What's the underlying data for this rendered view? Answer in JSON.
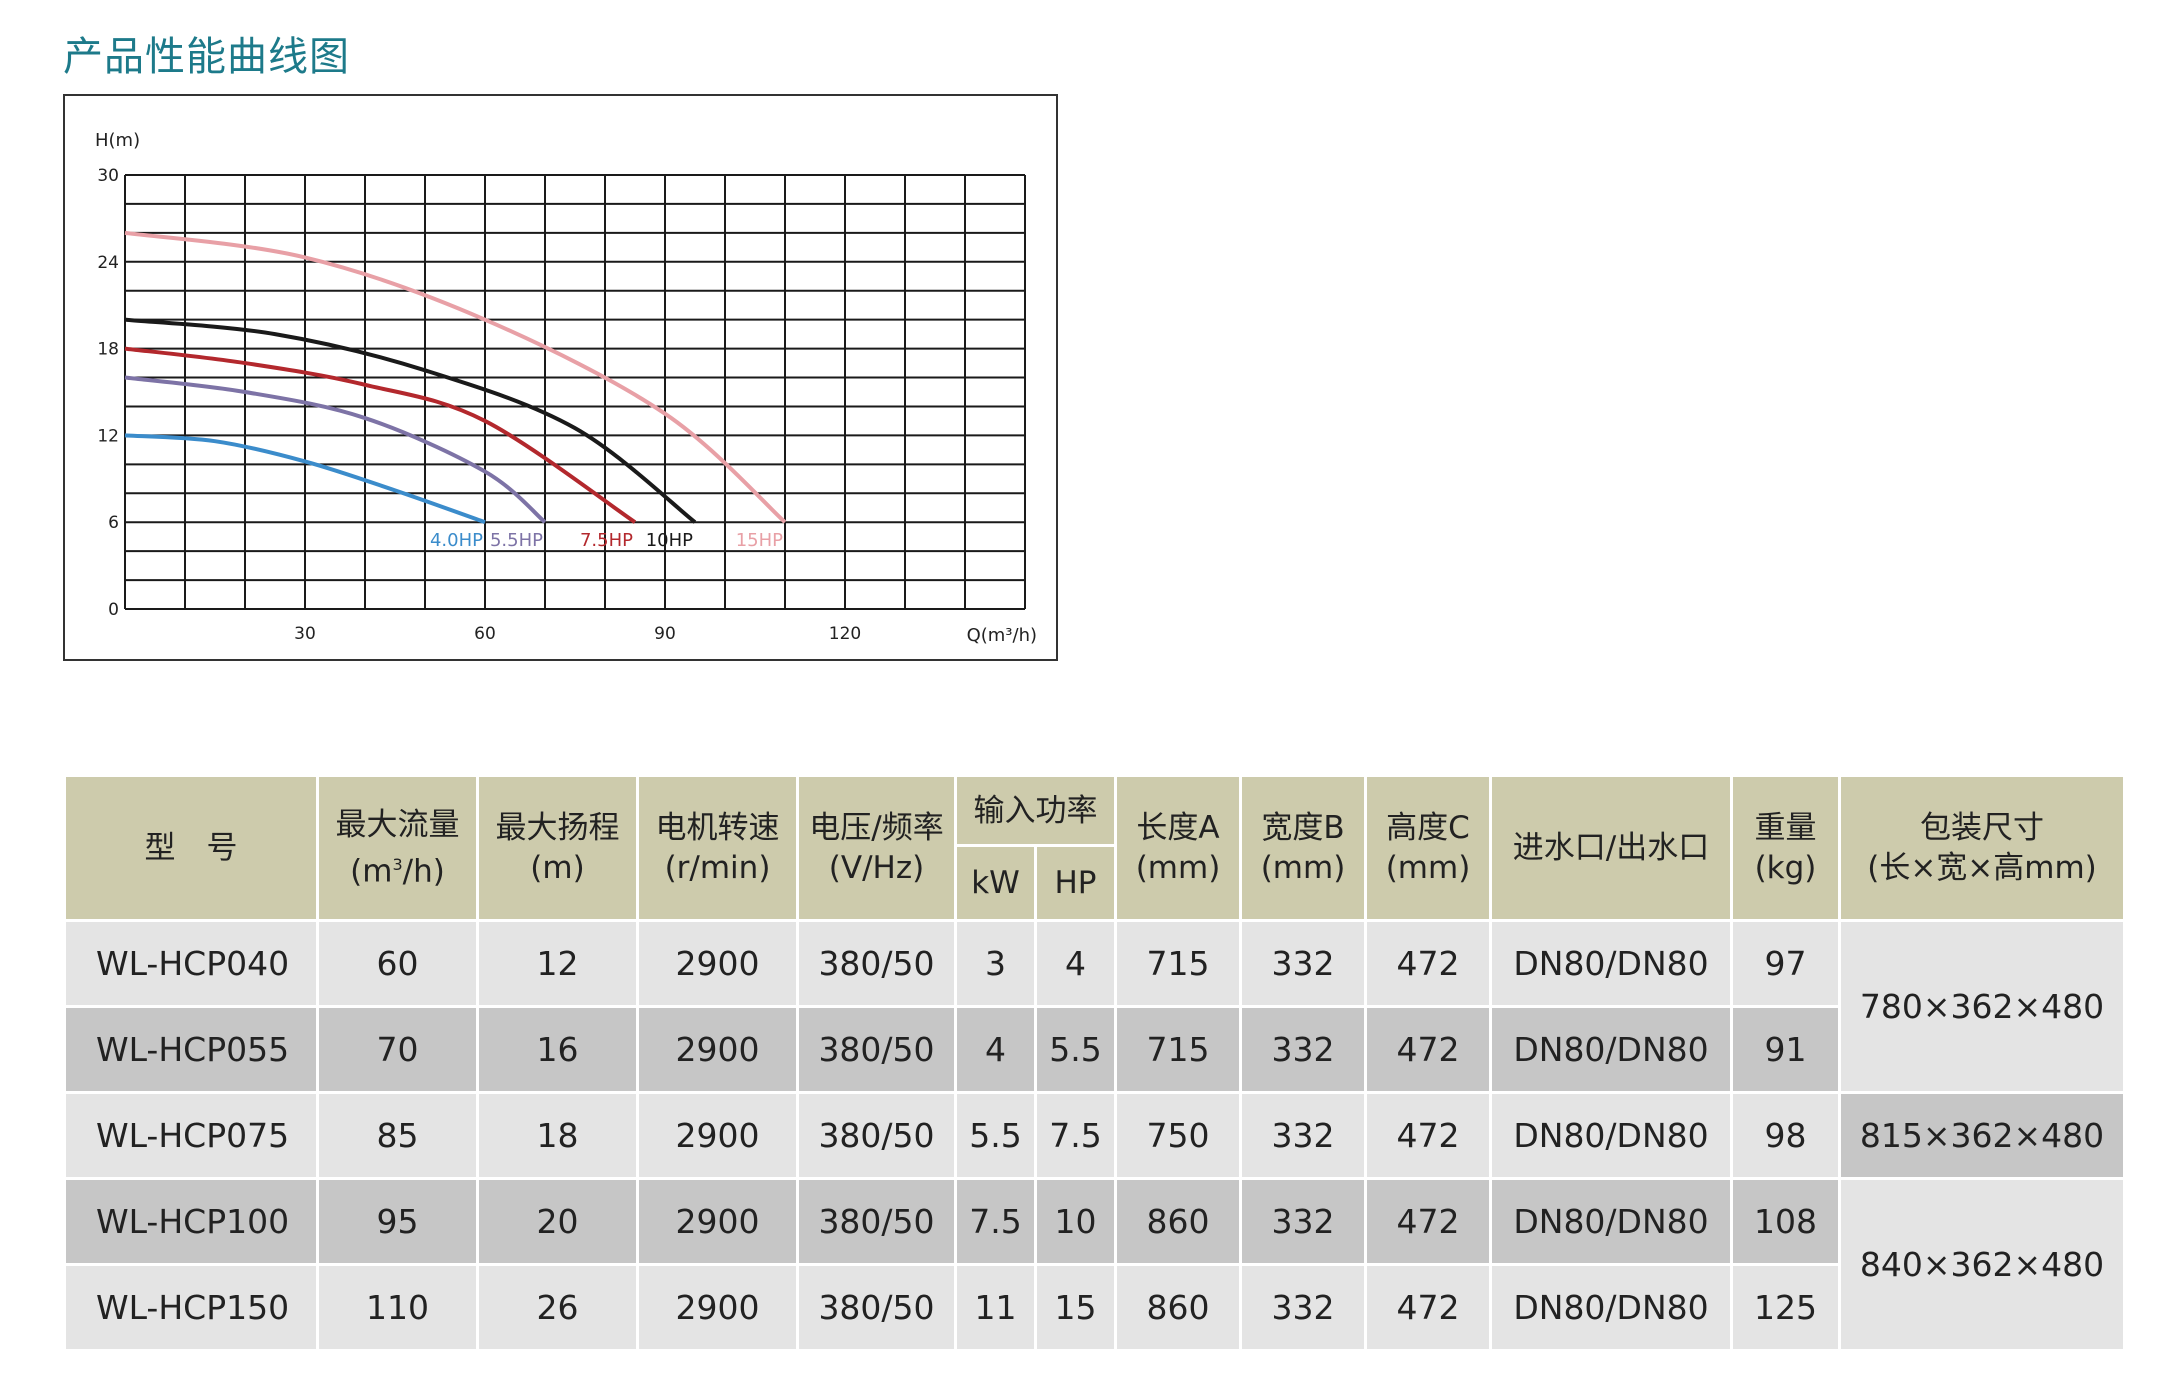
{
  "title": "产品性能曲线图",
  "chart_data": {
    "type": "line",
    "xlabel": "Q(m³/h)",
    "ylabel": "H(m)",
    "xlim": [
      0,
      150
    ],
    "ylim": [
      0,
      30
    ],
    "x_ticks": [
      "30",
      "60",
      "90",
      "120"
    ],
    "y_ticks": [
      "0",
      "6",
      "12",
      "18",
      "24",
      "30"
    ],
    "grid": true,
    "series": [
      {
        "name": "4.0HP",
        "color": "#3b8ccb",
        "x": [
          0,
          15,
          30,
          45,
          60
        ],
        "y": [
          12,
          11.6,
          10.2,
          8.2,
          6
        ]
      },
      {
        "name": "5.5HP",
        "color": "#7d73a6",
        "x": [
          0,
          20,
          40,
          60,
          70
        ],
        "y": [
          16,
          15,
          13.2,
          9.5,
          6
        ]
      },
      {
        "name": "7.5HP",
        "color": "#b3282d",
        "x": [
          0,
          20,
          40,
          60,
          85
        ],
        "y": [
          18,
          17,
          15.5,
          13,
          6
        ]
      },
      {
        "name": "10HP",
        "color": "#1a1a1a",
        "x": [
          0,
          25,
          50,
          75,
          95
        ],
        "y": [
          20,
          19,
          16.5,
          12.5,
          6
        ]
      },
      {
        "name": "15HP",
        "color": "#e8a0a6",
        "x": [
          0,
          30,
          60,
          90,
          110
        ],
        "y": [
          26,
          24.3,
          20,
          13.5,
          6
        ]
      }
    ]
  },
  "table": {
    "headers": {
      "model": "型　号",
      "max_flow": "最大流量",
      "max_flow_unit_pre": "(m",
      "max_flow_unit_sup": "3",
      "max_flow_unit_post": "/h)",
      "max_head": "最大扬程",
      "max_head_unit": "(m)",
      "speed": "电机转速",
      "speed_unit": "(r/min)",
      "voltage": "电压/频率",
      "voltage_unit": "(V/Hz)",
      "power": "输入功率",
      "power_kw": "kW",
      "power_hp": "HP",
      "length": "长度A",
      "length_unit": "(mm)",
      "width": "宽度B",
      "width_unit": "(mm)",
      "height": "高度C",
      "height_unit": "(mm)",
      "port": "进水口/出水口",
      "weight": "重量",
      "weight_unit": "(kg)",
      "package": "包装尺寸",
      "package_unit": "(长×宽×高mm)"
    },
    "rows": [
      {
        "model": "WL-HCP040",
        "flow": "60",
        "head": "12",
        "speed": "2900",
        "voltage": "380/50",
        "kw": "3",
        "hp": "4",
        "length": "715",
        "width": "332",
        "height": "472",
        "port": "DN80/DN80",
        "weight": "97"
      },
      {
        "model": "WL-HCP055",
        "flow": "70",
        "head": "16",
        "speed": "2900",
        "voltage": "380/50",
        "kw": "4",
        "hp": "5.5",
        "length": "715",
        "width": "332",
        "height": "472",
        "port": "DN80/DN80",
        "weight": "91"
      },
      {
        "model": "WL-HCP075",
        "flow": "85",
        "head": "18",
        "speed": "2900",
        "voltage": "380/50",
        "kw": "5.5",
        "hp": "7.5",
        "length": "750",
        "width": "332",
        "height": "472",
        "port": "DN80/DN80",
        "weight": "98"
      },
      {
        "model": "WL-HCP100",
        "flow": "95",
        "head": "20",
        "speed": "2900",
        "voltage": "380/50",
        "kw": "7.5",
        "hp": "10",
        "length": "860",
        "width": "332",
        "height": "472",
        "port": "DN80/DN80",
        "weight": "108"
      },
      {
        "model": "WL-HCP150",
        "flow": "110",
        "head": "26",
        "speed": "2900",
        "voltage": "380/50",
        "kw": "11",
        "hp": "15",
        "length": "860",
        "width": "332",
        "height": "472",
        "port": "DN80/DN80",
        "weight": "125"
      }
    ],
    "packages": [
      "780×362×480",
      "815×362×480",
      "840×362×480"
    ]
  }
}
